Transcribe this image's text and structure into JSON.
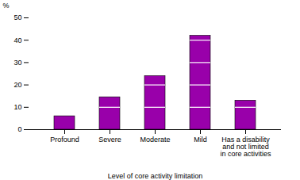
{
  "chart_data": {
    "type": "bar",
    "categories": [
      "Profound",
      "Severe",
      "Moderate",
      "Mild",
      "Has a disability\nand not limited\nin core activities"
    ],
    "values": [
      6,
      14.5,
      24,
      42,
      13
    ],
    "color": "#9900aa",
    "ylim": [
      0,
      50
    ],
    "yticks": [
      0,
      10,
      20,
      30,
      40,
      50
    ],
    "ylabel": "%",
    "xlabel": "Level of core activity limitation",
    "grid": false
  }
}
